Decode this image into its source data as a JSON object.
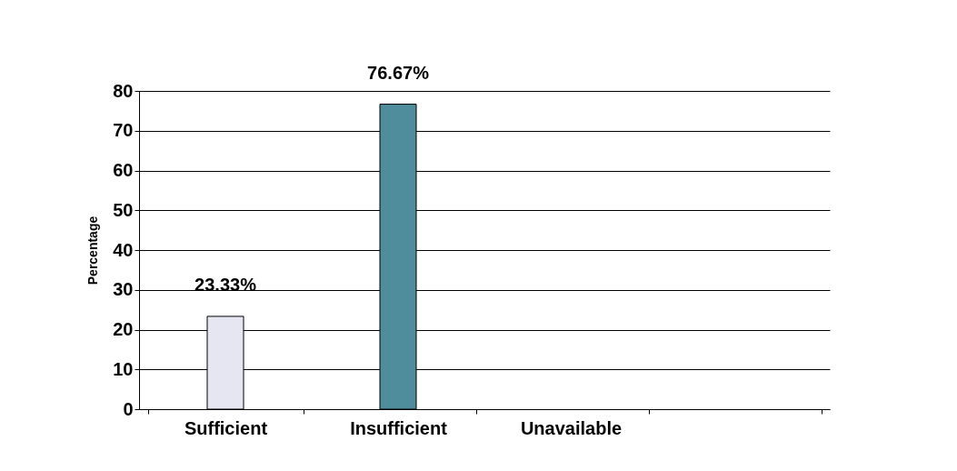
{
  "chart_data": {
    "type": "bar",
    "ylabel": "Percentage",
    "categories": [
      "Sufficient",
      "Insufficient",
      "Unavailable",
      null
    ],
    "values": [
      23.33,
      76.67,
      null,
      null
    ],
    "value_labels": [
      "23.33%",
      "76.67%",
      null,
      null
    ],
    "colors": [
      "#e6e6f2",
      "#4f8c9c",
      "#999999",
      "#999999"
    ],
    "ylim": [
      0,
      80
    ],
    "yticks": [
      0,
      10,
      20,
      30,
      40,
      50,
      60,
      70,
      80
    ],
    "grid": "y"
  }
}
